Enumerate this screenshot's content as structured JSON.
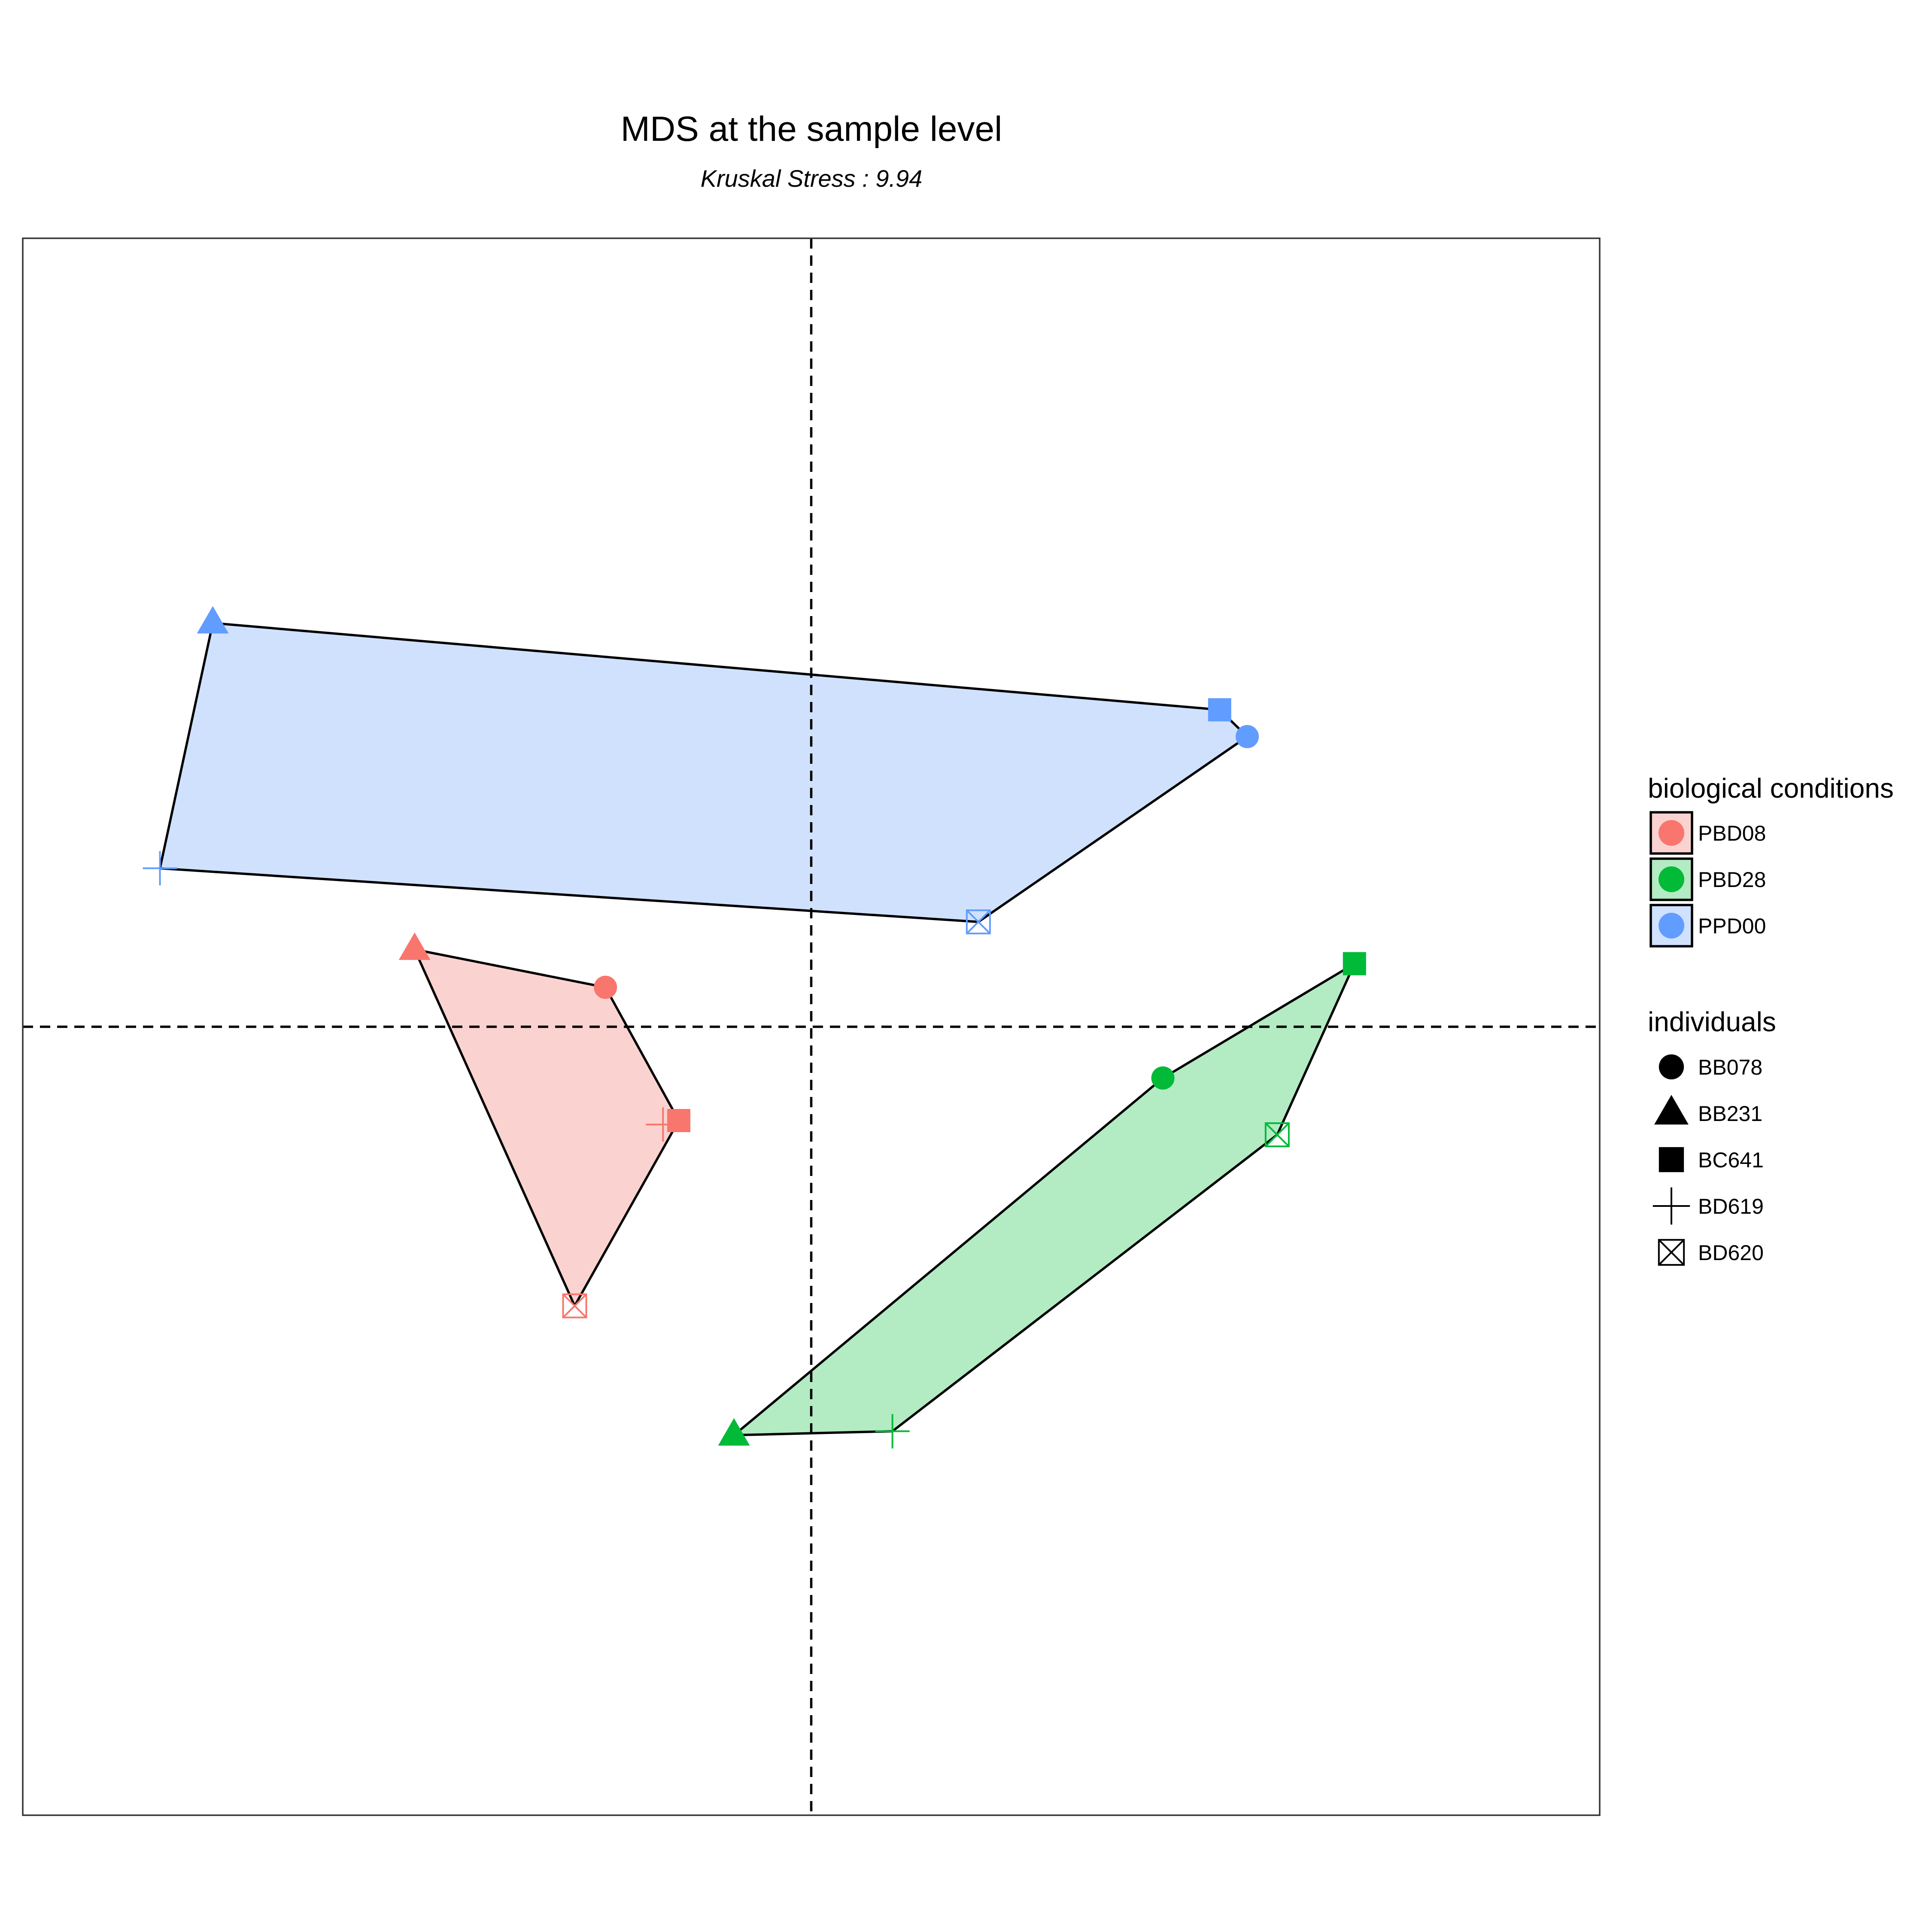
{
  "chart_data": {
    "type": "scatter",
    "title": "MDS at the sample level",
    "subtitle": "Kruskal Stress : 9.94",
    "xlabel": "",
    "ylabel": "",
    "xlim": [
      -1.0,
      1.0
    ],
    "ylim": [
      -1.0,
      1.0
    ],
    "reference_lines": {
      "x": 0,
      "y": 0,
      "style": "dashed"
    },
    "grid": false,
    "legend_position": "right",
    "hull_outline_color": "#000000",
    "series": [
      {
        "name": "PBD08",
        "color": "#F8766D",
        "fill": "#FAD3D0",
        "points": [
          {
            "individual": "BB078",
            "x": -0.261,
            "y": 0.05
          },
          {
            "individual": "BB231",
            "x": -0.503,
            "y": 0.098
          },
          {
            "individual": "BC641",
            "x": -0.168,
            "y": -0.119
          },
          {
            "individual": "BD619",
            "x": -0.188,
            "y": -0.124
          },
          {
            "individual": "BD620",
            "x": -0.3,
            "y": -0.354
          }
        ]
      },
      {
        "name": "PBD28",
        "color": "#00BA38",
        "fill": "#B3EBC3",
        "points": [
          {
            "individual": "BB078",
            "x": 0.446,
            "y": -0.065
          },
          {
            "individual": "BB231",
            "x": -0.098,
            "y": -0.518
          },
          {
            "individual": "BC641",
            "x": 0.689,
            "y": 0.08
          },
          {
            "individual": "BD619",
            "x": 0.103,
            "y": -0.513
          },
          {
            "individual": "BD620",
            "x": 0.591,
            "y": -0.137
          }
        ]
      },
      {
        "name": "PPD00",
        "color": "#619CFF",
        "fill": "#D0E1FD",
        "points": [
          {
            "individual": "BB078",
            "x": 0.553,
            "y": 0.368
          },
          {
            "individual": "BB231",
            "x": -0.759,
            "y": 0.512
          },
          {
            "individual": "BC641",
            "x": 0.518,
            "y": 0.402
          },
          {
            "individual": "BD619",
            "x": -0.826,
            "y": 0.201
          },
          {
            "individual": "BD620",
            "x": 0.212,
            "y": 0.133
          }
        ]
      }
    ],
    "legends": [
      {
        "title": "biological conditions",
        "items": [
          {
            "label": "PBD08",
            "color": "#F8766D",
            "fill": "#FAD3D0"
          },
          {
            "label": "PBD28",
            "color": "#00BA38",
            "fill": "#B3EBC3"
          },
          {
            "label": "PPD00",
            "color": "#619CFF",
            "fill": "#D0E1FD"
          }
        ]
      },
      {
        "title": "individuals",
        "items": [
          {
            "label": "BB078",
            "shape": "circle"
          },
          {
            "label": "BB231",
            "shape": "triangle"
          },
          {
            "label": "BC641",
            "shape": "square"
          },
          {
            "label": "BD619",
            "shape": "plus"
          },
          {
            "label": "BD620",
            "shape": "boxed-x"
          }
        ]
      }
    ]
  }
}
